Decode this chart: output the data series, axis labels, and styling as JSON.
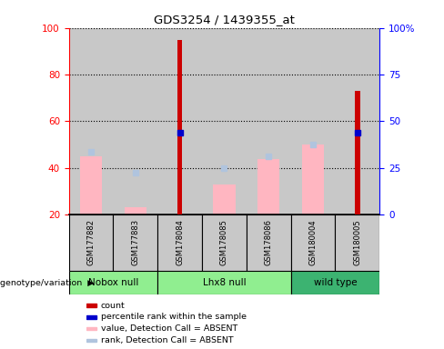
{
  "title": "GDS3254 / 1439355_at",
  "samples": [
    "GSM177882",
    "GSM177883",
    "GSM178084",
    "GSM178085",
    "GSM178086",
    "GSM180004",
    "GSM180005"
  ],
  "count_values": [
    null,
    null,
    95,
    null,
    null,
    null,
    73
  ],
  "percentile_values": [
    null,
    null,
    55,
    null,
    null,
    null,
    55
  ],
  "absent_value_bars": [
    45,
    23,
    null,
    33,
    44,
    50,
    null
  ],
  "absent_rank_bars": [
    47,
    38,
    null,
    40,
    45,
    50,
    null
  ],
  "ylim_left": [
    20,
    100
  ],
  "ylim_right": [
    0,
    100
  ],
  "yticks_left": [
    20,
    40,
    60,
    80,
    100
  ],
  "yticks_right": [
    0,
    25,
    50,
    75,
    100
  ],
  "yticklabels_right": [
    "0",
    "25",
    "50",
    "75",
    "100%"
  ],
  "count_color": "#CC0000",
  "percentile_color": "#0000CC",
  "absent_value_color": "#FFB6C1",
  "absent_rank_color": "#B0C4DE",
  "bg_color": "#C8C8C8",
  "group_configs": [
    {
      "label": "Nobox null",
      "color": "#90EE90",
      "start": 0,
      "end": 2
    },
    {
      "label": "Lhx8 null",
      "color": "#90EE90",
      "start": 2,
      "end": 5
    },
    {
      "label": "wild type",
      "color": "#3CB371",
      "start": 5,
      "end": 7
    }
  ],
  "legend_labels": [
    "count",
    "percentile rank within the sample",
    "value, Detection Call = ABSENT",
    "rank, Detection Call = ABSENT"
  ],
  "legend_colors": [
    "#CC0000",
    "#0000CC",
    "#FFB6C1",
    "#B0C4DE"
  ]
}
